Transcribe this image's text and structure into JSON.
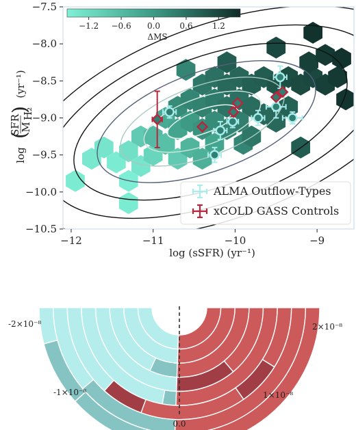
{
  "chart_data": [
    {
      "type": "scatter",
      "xlabel": "log (sSFR)  (yr⁻¹)",
      "ylabel_main": "log",
      "ylabel_frac_num": "SFR",
      "ylabel_frac_den": "M",
      "ylabel_frac_den_sub": "H₂",
      "ylabel_unit": "(yr⁻¹)",
      "xlim": [
        -12.1,
        -8.55
      ],
      "ylim": [
        -10.5,
        -7.5
      ],
      "x_ticks": [
        -12,
        -11,
        -10,
        -9
      ],
      "x_tick_labels": [
        "−12",
        "−11",
        "−10",
        "−9"
      ],
      "y_ticks": [
        -10.5,
        -10.0,
        -9.5,
        -9.0,
        -8.5,
        -8.0,
        -7.5
      ],
      "y_tick_labels": [
        "−10.5",
        "−10.0",
        "−9.5",
        "−9.0",
        "−8.5",
        "−8.0",
        "−7.5"
      ],
      "colorbar": {
        "label": "ΔMS",
        "range": [
          -1.6,
          1.6
        ],
        "ticks": [
          -1.2,
          -0.6,
          0.0,
          0.6,
          1.2
        ],
        "tick_labels": [
          "−1.2",
          "−0.6",
          "0.0",
          "0.6",
          "1.2"
        ],
        "colors": [
          "#7ff0d6",
          "#0f2b27"
        ]
      },
      "contours": [
        {
          "cx": -10.4,
          "cy": -9.05,
          "rx": 0.45,
          "ry": 0.1,
          "color": "#e8f5f0"
        },
        {
          "cx": -10.4,
          "cy": -9.05,
          "rx": 0.75,
          "ry": 0.2,
          "color": "#cfe8e0"
        },
        {
          "cx": -10.4,
          "cy": -9.05,
          "rx": 1.05,
          "ry": 0.3,
          "color": "#a6c9c0"
        },
        {
          "cx": -10.35,
          "cy": -9.05,
          "rx": 1.4,
          "ry": 0.42,
          "color": "#555f78"
        },
        {
          "cx": -10.3,
          "cy": -9.05,
          "rx": 1.75,
          "ry": 0.55,
          "color": "#111111"
        },
        {
          "cx": -10.25,
          "cy": -9.05,
          "rx": 2.15,
          "ry": 0.68,
          "color": "#111111"
        },
        {
          "cx": -10.2,
          "cy": -9.05,
          "rx": 2.55,
          "ry": 0.82,
          "color": "#111111"
        }
      ],
      "contour_angle_deg": 20,
      "hexbins": [
        {
          "x": -11.95,
          "y": -9.85,
          "c": -1.5
        },
        {
          "x": -11.75,
          "y": -9.55,
          "c": -1.45
        },
        {
          "x": -11.6,
          "y": -9.4,
          "c": -1.4
        },
        {
          "x": -11.45,
          "y": -9.6,
          "c": -1.5
        },
        {
          "x": -11.3,
          "y": -9.85,
          "c": -1.55
        },
        {
          "x": -11.3,
          "y": -9.45,
          "c": -1.3
        },
        {
          "x": -11.15,
          "y": -9.65,
          "c": -1.4
        },
        {
          "x": -11.0,
          "y": -9.5,
          "c": -1.1
        },
        {
          "x": -11.3,
          "y": -10.15,
          "c": -1.5
        },
        {
          "x": -11.15,
          "y": -9.25,
          "c": -0.9
        },
        {
          "x": -11.0,
          "y": -9.25,
          "c": -0.6
        },
        {
          "x": -10.85,
          "y": -9.35,
          "c": -0.7
        },
        {
          "x": -10.7,
          "y": -9.55,
          "c": -0.9
        },
        {
          "x": -10.55,
          "y": -9.4,
          "c": -0.5
        },
        {
          "x": -10.4,
          "y": -9.55,
          "c": -0.4
        },
        {
          "x": -10.25,
          "y": -9.35,
          "c": -0.2
        },
        {
          "x": -10.85,
          "y": -9.0,
          "c": -0.3
        },
        {
          "x": -10.7,
          "y": -9.15,
          "c": -0.2
        },
        {
          "x": -10.55,
          "y": -9.05,
          "c": 0.0
        },
        {
          "x": -10.4,
          "y": -9.15,
          "c": 0.1
        },
        {
          "x": -10.25,
          "y": -9.05,
          "c": 0.2
        },
        {
          "x": -10.1,
          "y": -9.15,
          "c": 0.3
        },
        {
          "x": -9.95,
          "y": -9.05,
          "c": 0.4
        },
        {
          "x": -10.7,
          "y": -8.85,
          "c": 0.2
        },
        {
          "x": -10.55,
          "y": -8.75,
          "c": 0.3
        },
        {
          "x": -10.4,
          "y": -8.85,
          "c": 0.35
        },
        {
          "x": -10.25,
          "y": -8.75,
          "c": 0.45
        },
        {
          "x": -10.1,
          "y": -8.85,
          "c": 0.55
        },
        {
          "x": -9.95,
          "y": -8.75,
          "c": 0.6
        },
        {
          "x": -9.8,
          "y": -8.85,
          "c": 0.65
        },
        {
          "x": -9.65,
          "y": -8.95,
          "c": 0.7
        },
        {
          "x": -9.5,
          "y": -9.05,
          "c": 0.7
        },
        {
          "x": -9.35,
          "y": -8.85,
          "c": 0.8
        },
        {
          "x": -10.4,
          "y": -8.55,
          "c": 0.5
        },
        {
          "x": -10.25,
          "y": -8.45,
          "c": 0.6
        },
        {
          "x": -10.1,
          "y": -8.55,
          "c": 0.7
        },
        {
          "x": -9.95,
          "y": -8.45,
          "c": 0.75
        },
        {
          "x": -9.8,
          "y": -8.55,
          "c": 0.85
        },
        {
          "x": -9.65,
          "y": -8.45,
          "c": 0.9
        },
        {
          "x": -9.5,
          "y": -8.55,
          "c": 1.0
        },
        {
          "x": -9.35,
          "y": -8.45,
          "c": 1.1
        },
        {
          "x": -9.2,
          "y": -8.55,
          "c": 1.15
        },
        {
          "x": -9.05,
          "y": -8.45,
          "c": 1.2
        },
        {
          "x": -8.9,
          "y": -8.55,
          "c": 1.3
        },
        {
          "x": -8.75,
          "y": -8.45,
          "c": 1.4
        },
        {
          "x": -8.65,
          "y": -8.75,
          "c": 1.45
        },
        {
          "x": -9.1,
          "y": -8.25,
          "c": 1.3
        },
        {
          "x": -8.9,
          "y": -8.15,
          "c": 1.4
        },
        {
          "x": -8.7,
          "y": -8.2,
          "c": 1.5
        },
        {
          "x": -9.5,
          "y": -8.05,
          "c": 1.2
        },
        {
          "x": -9.05,
          "y": -7.85,
          "c": 1.5
        },
        {
          "x": -10.1,
          "y": -8.25,
          "c": 0.9
        },
        {
          "x": -9.9,
          "y": -9.35,
          "c": 0.3
        },
        {
          "x": -9.2,
          "y": -9.4,
          "c": 0.9
        },
        {
          "x": -9.8,
          "y": -9.25,
          "c": 0.5
        },
        {
          "x": -10.6,
          "y": -8.35,
          "c": 0.3
        }
      ],
      "series": [
        {
          "name": "ALMA Outflow-Types",
          "color": "#a8ecec",
          "marker": "circle",
          "points": [
            {
              "x": -10.8,
              "y": -8.92,
              "xe": 0.08,
              "ye": 0.08
            },
            {
              "x": -10.18,
              "y": -9.17,
              "xe": 0.08,
              "ye": 0.12
            },
            {
              "x": -10.03,
              "y": -9.05,
              "xe": 0.07,
              "ye": 0.08
            },
            {
              "x": -10.25,
              "y": -9.5,
              "xe": 0.08,
              "ye": 0.1
            },
            {
              "x": -9.72,
              "y": -9.0,
              "xe": 0.08,
              "ye": 0.1
            },
            {
              "x": -9.5,
              "y": -8.85,
              "xe": 0.12,
              "ye": 0.15
            },
            {
              "x": -9.45,
              "y": -8.45,
              "xe": 0.08,
              "ye": 0.15
            },
            {
              "x": -9.3,
              "y": -9.0,
              "xe": 0.12,
              "ye": 0.08
            }
          ]
        },
        {
          "name": "xCOLD GASS Controls",
          "color": "#b8263c",
          "marker": "diamond",
          "points": [
            {
              "x": -10.95,
              "y": -9.02,
              "xe": 0.06,
              "ye": 0.38
            },
            {
              "x": -10.4,
              "y": -9.12,
              "xe": 0.0,
              "ye": 0.0
            },
            {
              "x": -10.02,
              "y": -8.92,
              "xe": 0.0,
              "ye": 0.06
            },
            {
              "x": -9.97,
              "y": -8.8,
              "xe": 0.0,
              "ye": 0.0
            },
            {
              "x": -9.5,
              "y": -8.72,
              "xe": 0.0,
              "ye": 0.0
            },
            {
              "x": -9.42,
              "y": -8.65,
              "xe": 0.0,
              "ye": 0.0
            }
          ]
        }
      ]
    },
    {
      "type": "polar-histogram",
      "tick_labels": [
        "-2×10⁻⁸",
        "-1×10⁻⁸",
        "0.0",
        "1×10⁻⁸",
        "2×10⁻⁸"
      ],
      "rings": 8,
      "colors": {
        "light": "#b5eded",
        "light_dark": "#86c3c3",
        "red": "#cd5a5a",
        "red_dark": "#a13e45"
      },
      "rings_data": [
        [
          {
            "a0": -90,
            "a1": -2,
            "c": "light"
          },
          {
            "a0": -2,
            "a1": 90,
            "c": "red"
          }
        ],
        [
          {
            "a0": -90,
            "a1": -2,
            "c": "light"
          },
          {
            "a0": -2,
            "a1": 90,
            "c": "red"
          }
        ],
        [
          {
            "a0": -90,
            "a1": -25,
            "c": "light"
          },
          {
            "a0": -25,
            "a1": -2,
            "c": "light_dark"
          },
          {
            "a0": -2,
            "a1": 90,
            "c": "red"
          }
        ],
        [
          {
            "a0": -90,
            "a1": -2,
            "c": "light"
          },
          {
            "a0": -2,
            "a1": 40,
            "c": "red_dark"
          },
          {
            "a0": 40,
            "a1": 90,
            "c": "red"
          }
        ],
        [
          {
            "a0": -90,
            "a1": -10,
            "c": "light"
          },
          {
            "a0": -10,
            "a1": -2,
            "c": "light_dark"
          },
          {
            "a0": -2,
            "a1": 90,
            "c": "red"
          }
        ],
        [
          {
            "a0": -90,
            "a1": -42,
            "c": "light"
          },
          {
            "a0": -42,
            "a1": -20,
            "c": "red_dark"
          },
          {
            "a0": -20,
            "a1": 35,
            "c": "red"
          },
          {
            "a0": 35,
            "a1": 58,
            "c": "red_dark"
          },
          {
            "a0": 58,
            "a1": 90,
            "c": "red"
          }
        ],
        [
          {
            "a0": -90,
            "a1": -50,
            "c": "light"
          },
          {
            "a0": -50,
            "a1": -2,
            "c": "light_dark"
          },
          {
            "a0": -2,
            "a1": 90,
            "c": "red"
          }
        ],
        [
          {
            "a0": -90,
            "a1": -75,
            "c": "light"
          },
          {
            "a0": -75,
            "a1": -48,
            "c": "light_dark"
          },
          {
            "a0": -48,
            "a1": 10,
            "c": "light_dark"
          },
          {
            "a0": 10,
            "a1": 90,
            "c": "red"
          }
        ]
      ]
    }
  ]
}
